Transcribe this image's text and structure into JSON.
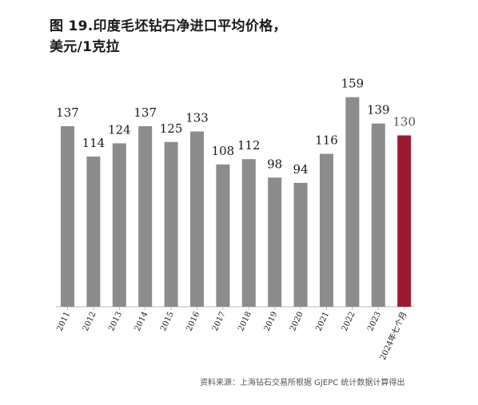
{
  "title_line1": "图 19.印度毛坯钻石净进口平均价格，",
  "title_line2": "美元/1克拉",
  "source": "资料来源：上海钻石交易所根据 GJEPC 统计数据计算得出",
  "colors": {
    "bar": "#8c8c8c",
    "highlight": "#9a1b2f",
    "text": "#1a1a1a",
    "axis": "#bbbbbb"
  },
  "chart_data": {
    "type": "bar",
    "categories": [
      "2011",
      "2012",
      "2013",
      "2014",
      "2015",
      "2016",
      "2017",
      "2018",
      "2019",
      "2020",
      "2021",
      "2022",
      "2023",
      "2024年七个月"
    ],
    "values": [
      137,
      114,
      124,
      137,
      125,
      133,
      108,
      112,
      98,
      94,
      116,
      159,
      139,
      130
    ],
    "highlight_index": 13,
    "ylim": [
      0,
      160
    ],
    "grid": false,
    "legend": "none"
  }
}
